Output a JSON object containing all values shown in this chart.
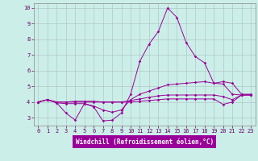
{
  "xlabel": "Windchill (Refroidissement éolien,°C)",
  "xlim": [
    -0.5,
    23.5
  ],
  "ylim": [
    2.5,
    10.3
  ],
  "xticks": [
    0,
    1,
    2,
    3,
    4,
    5,
    6,
    7,
    8,
    9,
    10,
    11,
    12,
    13,
    14,
    15,
    16,
    17,
    18,
    19,
    20,
    21,
    22,
    23
  ],
  "yticks": [
    3,
    4,
    5,
    6,
    7,
    8,
    9,
    10
  ],
  "background_color": "#cceee8",
  "grid_color": "#b0c8c8",
  "line_color": "#990099",
  "lines": [
    {
      "x": [
        0,
        1,
        2,
        3,
        4,
        5,
        6,
        7,
        8,
        9,
        10,
        11,
        12,
        13,
        14,
        15,
        16,
        17,
        18,
        19,
        20,
        21,
        22,
        23
      ],
      "y": [
        4.0,
        4.15,
        3.95,
        3.3,
        2.85,
        3.9,
        3.7,
        2.8,
        2.85,
        3.3,
        4.5,
        6.6,
        7.7,
        8.5,
        10.0,
        9.4,
        7.8,
        6.9,
        6.5,
        5.2,
        5.3,
        5.2,
        4.5,
        4.5
      ]
    },
    {
      "x": [
        0,
        1,
        2,
        3,
        4,
        5,
        6,
        7,
        8,
        9,
        10,
        11,
        12,
        13,
        14,
        15,
        16,
        17,
        18,
        19,
        20,
        21,
        22,
        23
      ],
      "y": [
        4.0,
        4.15,
        3.95,
        3.9,
        3.9,
        3.9,
        3.75,
        3.5,
        3.35,
        3.5,
        4.15,
        4.5,
        4.7,
        4.9,
        5.1,
        5.15,
        5.2,
        5.25,
        5.3,
        5.2,
        5.15,
        4.5,
        4.45,
        4.45
      ]
    },
    {
      "x": [
        0,
        1,
        2,
        3,
        4,
        5,
        6,
        7,
        8,
        9,
        10,
        11,
        12,
        13,
        14,
        15,
        16,
        17,
        18,
        19,
        20,
        21,
        22,
        23
      ],
      "y": [
        4.0,
        4.15,
        4.0,
        4.0,
        4.05,
        4.05,
        4.05,
        4.0,
        4.0,
        4.0,
        4.1,
        4.2,
        4.3,
        4.4,
        4.45,
        4.45,
        4.45,
        4.45,
        4.45,
        4.45,
        4.35,
        4.15,
        4.45,
        4.45
      ]
    },
    {
      "x": [
        0,
        1,
        2,
        3,
        4,
        5,
        6,
        7,
        8,
        9,
        10,
        11,
        12,
        13,
        14,
        15,
        16,
        17,
        18,
        19,
        20,
        21,
        22,
        23
      ],
      "y": [
        4.0,
        4.15,
        4.0,
        4.0,
        4.0,
        4.0,
        4.0,
        4.0,
        4.0,
        4.0,
        4.0,
        4.05,
        4.1,
        4.15,
        4.2,
        4.2,
        4.2,
        4.2,
        4.2,
        4.2,
        3.85,
        4.0,
        4.45,
        4.45
      ]
    }
  ]
}
